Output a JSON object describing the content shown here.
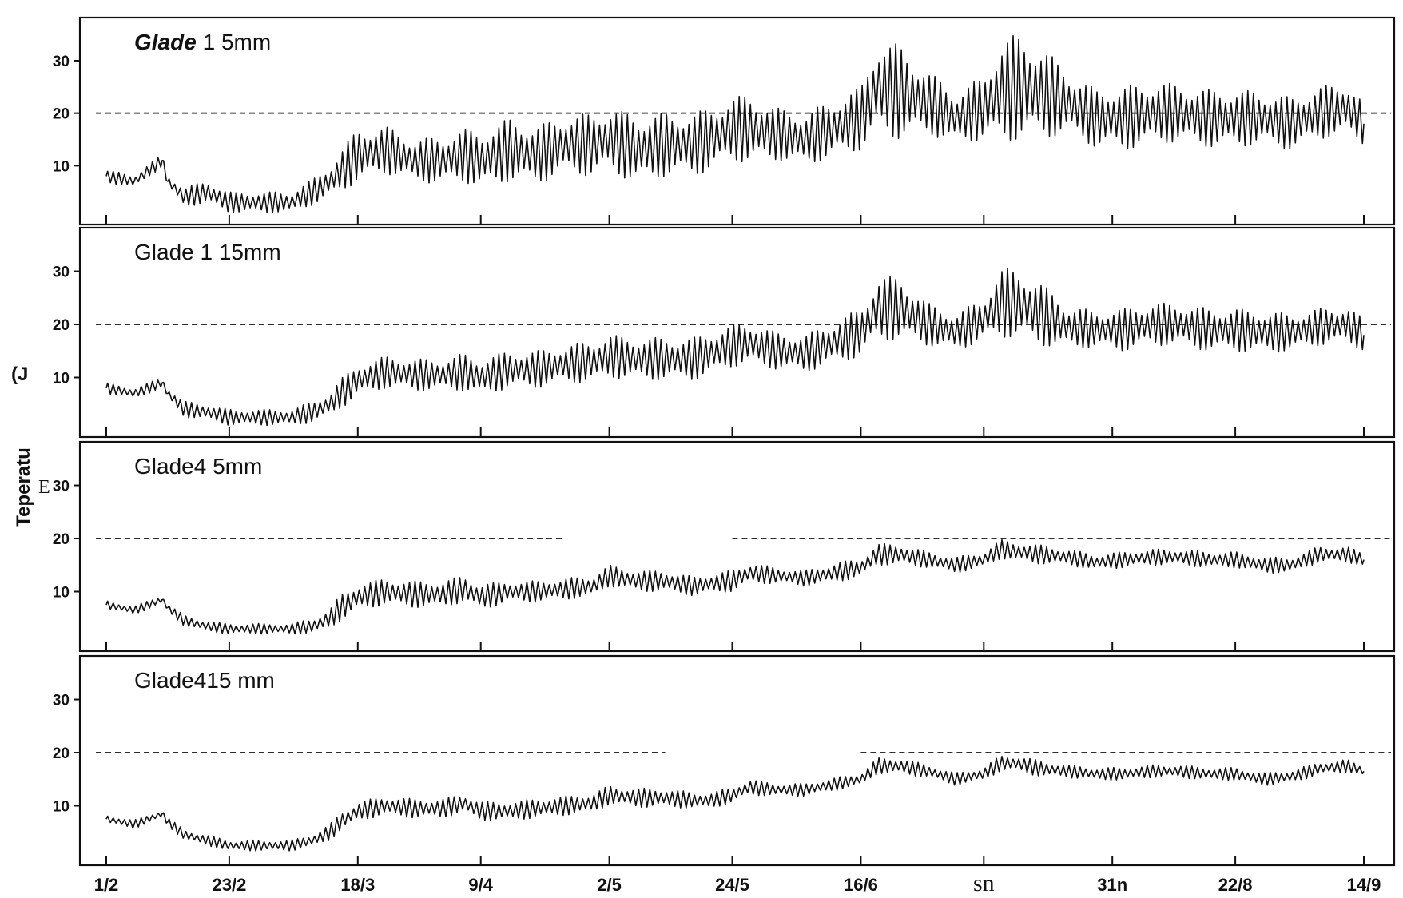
{
  "chart_data": {
    "type": "line",
    "ylabel": "Teperatu",
    "ylabel_fragments": [
      "(J",
      "E"
    ],
    "x_tick_labels": [
      "1/2",
      "23/2",
      "18/3",
      "9/4",
      "2/5",
      "24/5",
      "16/6",
      "sn",
      "31n",
      "22/8",
      "14/9"
    ],
    "x_tick_days": [
      0,
      22,
      45,
      67,
      90,
      112,
      135,
      157,
      180,
      202,
      225
    ],
    "xlim": [
      0,
      225
    ],
    "ylim": [
      0,
      37
    ],
    "y_tick_values": [
      10,
      20,
      30
    ],
    "legend": "none",
    "grid": false,
    "panels": [
      {
        "title_italic": "Glade",
        "title_rest": "1 5mm",
        "y_tick_labels": [
          "10",
          "20",
          "30"
        ],
        "threshold": 20,
        "threshold_segments": [
          [
            0,
            225
          ]
        ],
        "series": [
          {
            "x": [
              0,
              5,
              10,
              11,
              14,
              18,
              22,
              27,
              33,
              37,
              40,
              42,
              45,
              50,
              55,
              60,
              64,
              67,
              72,
              77,
              82,
              87,
              90,
              95,
              100,
              105,
              108,
              112,
              115,
              120,
              125,
              130,
              135,
              138,
              142,
              147,
              152,
              157,
              160,
              163,
              167,
              172,
              177,
              182,
              187,
              192,
              197,
              202,
              207,
              212,
              217,
              222,
              225
            ],
            "y": [
              8,
              7,
              11,
              7,
              4,
              5,
              3,
              3,
              3,
              5,
              7,
              9,
              12,
              13,
              11,
              11,
              12,
              11,
              13,
              12,
              14,
              14,
              15,
              13,
              14,
              14,
              15,
              17,
              17,
              16,
              15,
              17,
              19,
              25,
              24,
              22,
              19,
              21,
              24,
              25,
              24,
              22,
              19,
              19,
              20,
              20,
              19,
              19,
              19,
              18,
              20,
              21,
              18
            ],
            "amp": [
              1.2,
              1.2,
              1.2,
              1.2,
              1.8,
              2.2,
              2,
              2,
              2,
              2.5,
              3,
              4,
              5,
              4.5,
              4,
              4.5,
              5,
              5.5,
              6,
              5.5,
              5.5,
              6,
              6,
              6.5,
              6,
              6,
              6,
              6,
              6.5,
              5,
              5,
              5.5,
              6,
              9,
              9,
              6,
              5,
              6,
              10,
              10,
              9,
              6,
              5.5,
              6,
              6,
              5.5,
              5.5,
              5.5,
              5,
              5,
              5,
              5,
              4
            ]
          }
        ]
      },
      {
        "title_italic": "",
        "title_rest": "Glade 1 15mm",
        "y_tick_labels": [
          "10",
          "20",
          "30"
        ],
        "threshold": 20,
        "threshold_segments": [
          [
            0,
            225
          ]
        ],
        "series": [
          {
            "x": [
              0,
              5,
              10,
              11,
              14,
              18,
              22,
              27,
              33,
              37,
              40,
              42,
              45,
              50,
              55,
              60,
              64,
              67,
              72,
              77,
              82,
              87,
              90,
              95,
              100,
              105,
              108,
              112,
              115,
              120,
              125,
              130,
              135,
              138,
              142,
              147,
              152,
              157,
              160,
              163,
              167,
              172,
              177,
              182,
              187,
              192,
              197,
              202,
              207,
              212,
              217,
              222,
              225
            ],
            "y": [
              8,
              7,
              9,
              7,
              4,
              3.5,
              2.5,
              2.5,
              2.5,
              3.5,
              5,
              7,
              9.5,
              11,
              10.5,
              10.5,
              11,
              10,
              11.5,
              11.5,
              12.5,
              13,
              14,
              13.5,
              13.5,
              13.5,
              14.5,
              16,
              16.5,
              15,
              14.5,
              16.5,
              18.5,
              23,
              23,
              20,
              18.5,
              21,
              24,
              24,
              22,
              19.5,
              19,
              19,
              20,
              20,
              19,
              19,
              18.5,
              18.5,
              19.5,
              20,
              18
            ],
            "amp": [
              1,
              1,
              1,
              1,
              1.5,
              1.5,
              1.5,
              1.5,
              1.5,
              2,
              2.2,
              2.8,
              3,
              3,
              3,
              3,
              3.5,
              3.5,
              3.5,
              3.5,
              3.5,
              4,
              4,
              4,
              4,
              4,
              4,
              4,
              4,
              3.5,
              3.5,
              4,
              4.5,
              6,
              6,
              4,
              3.5,
              4,
              6.5,
              6.5,
              6,
              4,
              3.5,
              4,
              4,
              4,
              4,
              4,
              4,
              3.5,
              3.5,
              3.5,
              3
            ]
          }
        ]
      },
      {
        "title_italic": "",
        "title_rest": "Glade4   5mm",
        "y_tick_labels": [
          "10",
          "20",
          "30"
        ],
        "threshold": 20,
        "threshold_segments": [
          [
            0,
            82
          ],
          [
            112,
            225
          ]
        ],
        "series": [
          {
            "x": [
              0,
              5,
              10,
              11,
              14,
              18,
              22,
              27,
              33,
              37,
              40,
              42,
              45,
              50,
              55,
              60,
              64,
              67,
              72,
              77,
              82,
              87,
              90,
              95,
              100,
              105,
              108,
              112,
              115,
              120,
              125,
              130,
              135,
              138,
              142,
              147,
              152,
              157,
              160,
              163,
              167,
              172,
              177,
              182,
              187,
              192,
              197,
              202,
              207,
              212,
              217,
              222,
              225
            ],
            "y": [
              7.5,
              6.5,
              8.5,
              7,
              4.5,
              3.5,
              3,
              3,
              3,
              3.5,
              5,
              7,
              9,
              10,
              9.5,
              9.5,
              10.5,
              9,
              10,
              10,
              10.5,
              11,
              13,
              12,
              12,
              11,
              11.5,
              12,
              13.5,
              13,
              12.5,
              13.5,
              14.5,
              17,
              17,
              16,
              15,
              16,
              18,
              17.5,
              17,
              16.5,
              15.5,
              16,
              16.5,
              16.5,
              16,
              16,
              15,
              15,
              17,
              17,
              16
            ],
            "amp": [
              0.8,
              0.8,
              0.8,
              0.8,
              1,
              1,
              1,
              1,
              1,
              1.5,
              1.8,
              2.5,
              2.5,
              2.5,
              2.5,
              2.5,
              2.5,
              2.5,
              2,
              2,
              2,
              2,
              2,
              2,
              2,
              1.8,
              1.8,
              2,
              2,
              1.5,
              1.5,
              1.8,
              1.8,
              2,
              2,
              1.5,
              1.5,
              1.5,
              1.8,
              1.8,
              1.8,
              1.5,
              1.5,
              1.5,
              1.5,
              1.5,
              1.5,
              1.5,
              1.5,
              1.5,
              1.5,
              1.5,
              1.2
            ]
          }
        ]
      },
      {
        "title_italic": "",
        "title_rest": "Glade415  mm",
        "y_tick_labels": [
          "10",
          "20",
          "30"
        ],
        "threshold": 20,
        "threshold_segments": [
          [
            0,
            100
          ],
          [
            135,
            225
          ]
        ],
        "series": [
          {
            "x": [
              0,
              5,
              10,
              11,
              14,
              18,
              22,
              27,
              33,
              37,
              40,
              42,
              45,
              50,
              55,
              60,
              64,
              67,
              72,
              77,
              82,
              87,
              90,
              95,
              100,
              105,
              108,
              112,
              115,
              120,
              125,
              130,
              135,
              138,
              142,
              147,
              152,
              157,
              160,
              163,
              167,
              172,
              177,
              182,
              187,
              192,
              197,
              202,
              207,
              212,
              217,
              222,
              225
            ],
            "y": [
              7.5,
              6.5,
              8.5,
              7,
              4.5,
              3.5,
              2.5,
              2.5,
              2.5,
              3.5,
              5,
              7,
              9,
              10,
              9.5,
              9.5,
              10.5,
              9,
              9,
              9.5,
              10,
              10.5,
              12,
              11.5,
              11.5,
              11,
              11,
              12,
              13.5,
              13,
              13,
              14,
              15,
              17.5,
              17.5,
              16.5,
              15,
              16,
              18,
              18,
              17,
              16.5,
              16,
              16,
              16.5,
              16.5,
              16,
              16,
              15,
              15.5,
              17,
              17.5,
              16.5
            ],
            "amp": [
              0.8,
              0.8,
              0.8,
              0.8,
              1,
              1,
              1,
              1,
              1,
              1.2,
              1.5,
              1.8,
              1.8,
              1.8,
              1.8,
              1.8,
              1.8,
              1.8,
              1.8,
              1.8,
              1.8,
              1.8,
              1.8,
              1.8,
              1.8,
              1.5,
              1.5,
              1.5,
              1.5,
              1.2,
              1.2,
              1.2,
              1.2,
              1.5,
              1.5,
              1.2,
              1.2,
              1.2,
              1.5,
              1.5,
              1.5,
              1.2,
              1.2,
              1.2,
              1.2,
              1.2,
              1.2,
              1.2,
              1.2,
              1.2,
              1.2,
              1.2,
              1
            ]
          }
        ]
      }
    ]
  }
}
